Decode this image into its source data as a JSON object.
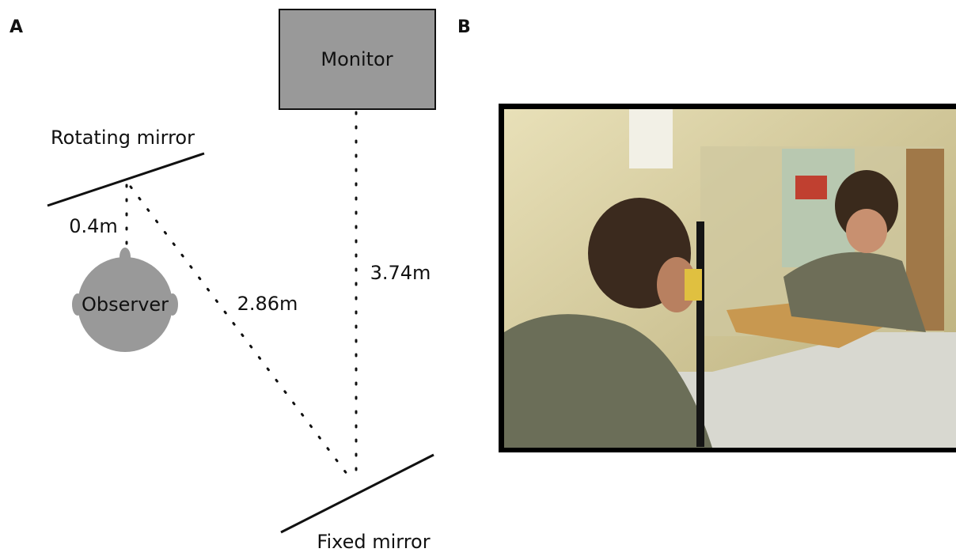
{
  "panels": [
    {
      "label": "A",
      "labels": {
        "monitor": "Monitor",
        "rotating_mirror": "Rotating mirror",
        "short_distance": "0.4m",
        "observer": "Observer",
        "diagonal_distance": "2.86m",
        "long_distance": "3.74m",
        "fixed_mirror": "Fixed mirror"
      }
    },
    {
      "label": "B"
    }
  ]
}
